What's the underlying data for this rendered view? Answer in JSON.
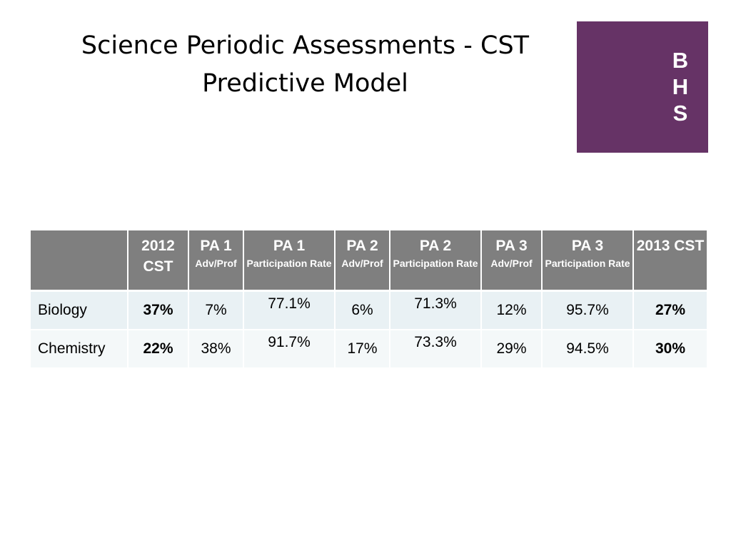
{
  "title": {
    "line1": "Science Periodic Assessments - CST",
    "line2": "Predictive Model"
  },
  "logo": {
    "letters": [
      "B",
      "H",
      "S"
    ],
    "color": "#663366"
  },
  "table": {
    "headers": [
      {
        "main": "",
        "sub": ""
      },
      {
        "main": "2012 CST",
        "sub": ""
      },
      {
        "main": "PA 1",
        "sub": "Adv/Prof"
      },
      {
        "main": "PA 1",
        "sub": "Participation Rate"
      },
      {
        "main": "PA 2",
        "sub": "Adv/Prof"
      },
      {
        "main": "PA 2",
        "sub": "Participation Rate"
      },
      {
        "main": "PA 3",
        "sub": "Adv/Prof"
      },
      {
        "main": "PA 3",
        "sub": "Participation Rate"
      },
      {
        "main": "2013 CST",
        "sub": ""
      }
    ],
    "rows": [
      {
        "subject": "Biology",
        "cst_2012": "37%",
        "pa1_adv_prof": "7%",
        "pa1_participation": "77.1%",
        "pa2_adv_prof": "6%",
        "pa2_participation": "71.3%",
        "pa3_adv_prof": "12%",
        "pa3_participation": "95.7%",
        "cst_2013": "27%"
      },
      {
        "subject": "Chemistry",
        "cst_2012": "22%",
        "pa1_adv_prof": "38%",
        "pa1_participation": "91.7%",
        "pa2_adv_prof": "17%",
        "pa2_participation": "73.3%",
        "pa3_adv_prof": "29%",
        "pa3_participation": "94.5%",
        "cst_2013": "30%"
      }
    ],
    "colors": {
      "header_bg": "#7f7f7f",
      "row1_bg": "#e9f1f4",
      "row2_bg": "#f4f8f9"
    }
  }
}
